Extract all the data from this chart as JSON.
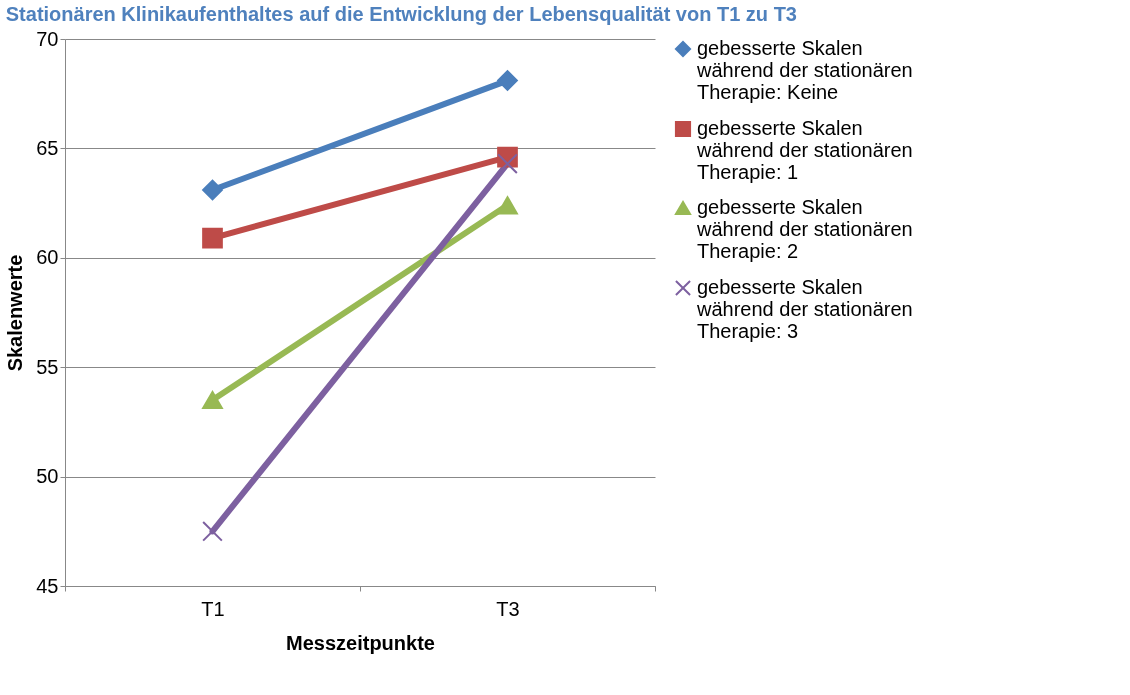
{
  "chart_data": {
    "type": "line",
    "title": "Stationären Klinikaufenthaltes auf die Entwicklung der Lebensqualität von T1 zu T3",
    "xlabel": "Messzeitpunkte",
    "ylabel": "Skalenwerte",
    "categories": [
      "T1",
      "T3"
    ],
    "series": [
      {
        "name": "gebesserte Skalen während der stationären Therapie: Keine",
        "color": "#4a7ebb",
        "marker": "diamond",
        "values": [
          63.1,
          68.1
        ]
      },
      {
        "name": "gebesserte Skalen während der stationären Therapie: 1",
        "color": "#be4b48",
        "marker": "square",
        "values": [
          60.9,
          64.6
        ]
      },
      {
        "name": "gebesserte Skalen während der stationären Therapie: 2",
        "color": "#98b954",
        "marker": "triangle",
        "values": [
          53.5,
          62.4
        ]
      },
      {
        "name": "gebesserte Skalen während der stationären Therapie: 3",
        "color": "#7d60a0",
        "marker": "cross",
        "values": [
          47.5,
          64.3
        ]
      }
    ],
    "ylim": [
      45,
      70
    ],
    "yticks": [
      45,
      50,
      55,
      60,
      65,
      70
    ],
    "grid": "y",
    "legend": "right"
  }
}
